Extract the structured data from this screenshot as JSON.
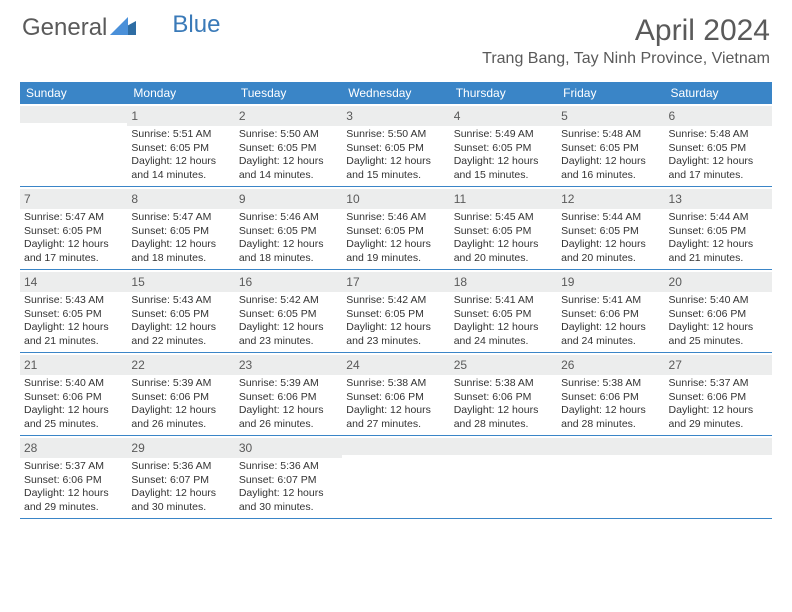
{
  "brand": {
    "part1": "General",
    "part2": "Blue"
  },
  "title": "April 2024",
  "location": "Trang Bang, Tay Ninh Province, Vietnam",
  "header_bg": "#3a85c7",
  "day_names": [
    "Sunday",
    "Monday",
    "Tuesday",
    "Wednesday",
    "Thursday",
    "Friday",
    "Saturday"
  ],
  "weeks": [
    [
      {
        "num": "",
        "sunrise": "",
        "sunset": "",
        "daylight": ""
      },
      {
        "num": "1",
        "sunrise": "Sunrise: 5:51 AM",
        "sunset": "Sunset: 6:05 PM",
        "daylight": "Daylight: 12 hours and 14 minutes."
      },
      {
        "num": "2",
        "sunrise": "Sunrise: 5:50 AM",
        "sunset": "Sunset: 6:05 PM",
        "daylight": "Daylight: 12 hours and 14 minutes."
      },
      {
        "num": "3",
        "sunrise": "Sunrise: 5:50 AM",
        "sunset": "Sunset: 6:05 PM",
        "daylight": "Daylight: 12 hours and 15 minutes."
      },
      {
        "num": "4",
        "sunrise": "Sunrise: 5:49 AM",
        "sunset": "Sunset: 6:05 PM",
        "daylight": "Daylight: 12 hours and 15 minutes."
      },
      {
        "num": "5",
        "sunrise": "Sunrise: 5:48 AM",
        "sunset": "Sunset: 6:05 PM",
        "daylight": "Daylight: 12 hours and 16 minutes."
      },
      {
        "num": "6",
        "sunrise": "Sunrise: 5:48 AM",
        "sunset": "Sunset: 6:05 PM",
        "daylight": "Daylight: 12 hours and 17 minutes."
      }
    ],
    [
      {
        "num": "7",
        "sunrise": "Sunrise: 5:47 AM",
        "sunset": "Sunset: 6:05 PM",
        "daylight": "Daylight: 12 hours and 17 minutes."
      },
      {
        "num": "8",
        "sunrise": "Sunrise: 5:47 AM",
        "sunset": "Sunset: 6:05 PM",
        "daylight": "Daylight: 12 hours and 18 minutes."
      },
      {
        "num": "9",
        "sunrise": "Sunrise: 5:46 AM",
        "sunset": "Sunset: 6:05 PM",
        "daylight": "Daylight: 12 hours and 18 minutes."
      },
      {
        "num": "10",
        "sunrise": "Sunrise: 5:46 AM",
        "sunset": "Sunset: 6:05 PM",
        "daylight": "Daylight: 12 hours and 19 minutes."
      },
      {
        "num": "11",
        "sunrise": "Sunrise: 5:45 AM",
        "sunset": "Sunset: 6:05 PM",
        "daylight": "Daylight: 12 hours and 20 minutes."
      },
      {
        "num": "12",
        "sunrise": "Sunrise: 5:44 AM",
        "sunset": "Sunset: 6:05 PM",
        "daylight": "Daylight: 12 hours and 20 minutes."
      },
      {
        "num": "13",
        "sunrise": "Sunrise: 5:44 AM",
        "sunset": "Sunset: 6:05 PM",
        "daylight": "Daylight: 12 hours and 21 minutes."
      }
    ],
    [
      {
        "num": "14",
        "sunrise": "Sunrise: 5:43 AM",
        "sunset": "Sunset: 6:05 PM",
        "daylight": "Daylight: 12 hours and 21 minutes."
      },
      {
        "num": "15",
        "sunrise": "Sunrise: 5:43 AM",
        "sunset": "Sunset: 6:05 PM",
        "daylight": "Daylight: 12 hours and 22 minutes."
      },
      {
        "num": "16",
        "sunrise": "Sunrise: 5:42 AM",
        "sunset": "Sunset: 6:05 PM",
        "daylight": "Daylight: 12 hours and 23 minutes."
      },
      {
        "num": "17",
        "sunrise": "Sunrise: 5:42 AM",
        "sunset": "Sunset: 6:05 PM",
        "daylight": "Daylight: 12 hours and 23 minutes."
      },
      {
        "num": "18",
        "sunrise": "Sunrise: 5:41 AM",
        "sunset": "Sunset: 6:05 PM",
        "daylight": "Daylight: 12 hours and 24 minutes."
      },
      {
        "num": "19",
        "sunrise": "Sunrise: 5:41 AM",
        "sunset": "Sunset: 6:06 PM",
        "daylight": "Daylight: 12 hours and 24 minutes."
      },
      {
        "num": "20",
        "sunrise": "Sunrise: 5:40 AM",
        "sunset": "Sunset: 6:06 PM",
        "daylight": "Daylight: 12 hours and 25 minutes."
      }
    ],
    [
      {
        "num": "21",
        "sunrise": "Sunrise: 5:40 AM",
        "sunset": "Sunset: 6:06 PM",
        "daylight": "Daylight: 12 hours and 25 minutes."
      },
      {
        "num": "22",
        "sunrise": "Sunrise: 5:39 AM",
        "sunset": "Sunset: 6:06 PM",
        "daylight": "Daylight: 12 hours and 26 minutes."
      },
      {
        "num": "23",
        "sunrise": "Sunrise: 5:39 AM",
        "sunset": "Sunset: 6:06 PM",
        "daylight": "Daylight: 12 hours and 26 minutes."
      },
      {
        "num": "24",
        "sunrise": "Sunrise: 5:38 AM",
        "sunset": "Sunset: 6:06 PM",
        "daylight": "Daylight: 12 hours and 27 minutes."
      },
      {
        "num": "25",
        "sunrise": "Sunrise: 5:38 AM",
        "sunset": "Sunset: 6:06 PM",
        "daylight": "Daylight: 12 hours and 28 minutes."
      },
      {
        "num": "26",
        "sunrise": "Sunrise: 5:38 AM",
        "sunset": "Sunset: 6:06 PM",
        "daylight": "Daylight: 12 hours and 28 minutes."
      },
      {
        "num": "27",
        "sunrise": "Sunrise: 5:37 AM",
        "sunset": "Sunset: 6:06 PM",
        "daylight": "Daylight: 12 hours and 29 minutes."
      }
    ],
    [
      {
        "num": "28",
        "sunrise": "Sunrise: 5:37 AM",
        "sunset": "Sunset: 6:06 PM",
        "daylight": "Daylight: 12 hours and 29 minutes."
      },
      {
        "num": "29",
        "sunrise": "Sunrise: 5:36 AM",
        "sunset": "Sunset: 6:07 PM",
        "daylight": "Daylight: 12 hours and 30 minutes."
      },
      {
        "num": "30",
        "sunrise": "Sunrise: 5:36 AM",
        "sunset": "Sunset: 6:07 PM",
        "daylight": "Daylight: 12 hours and 30 minutes."
      },
      {
        "num": "",
        "sunrise": "",
        "sunset": "",
        "daylight": ""
      },
      {
        "num": "",
        "sunrise": "",
        "sunset": "",
        "daylight": ""
      },
      {
        "num": "",
        "sunrise": "",
        "sunset": "",
        "daylight": ""
      },
      {
        "num": "",
        "sunrise": "",
        "sunset": "",
        "daylight": ""
      }
    ]
  ]
}
